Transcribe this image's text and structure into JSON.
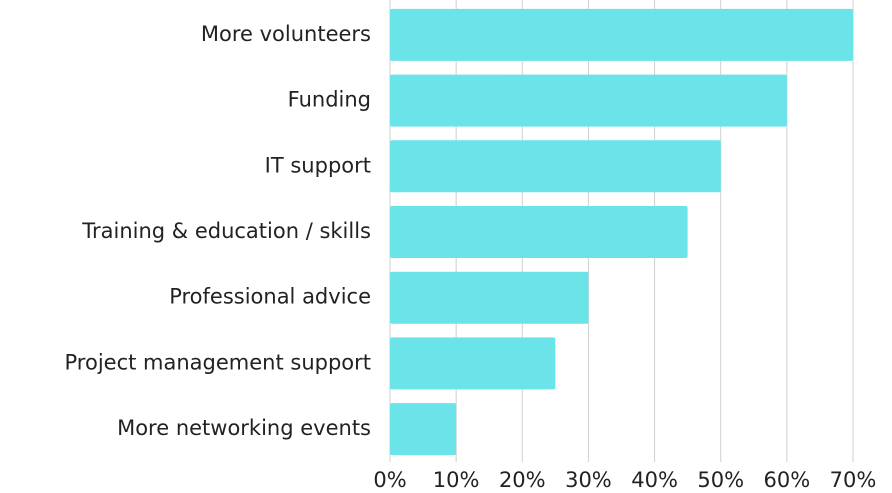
{
  "chart_data": {
    "type": "bar",
    "orientation": "horizontal",
    "categories": [
      "More volunteers",
      "Funding",
      "IT support",
      "Training & education / skills",
      "Professional advice",
      "Project management support",
      "More networking events"
    ],
    "values": [
      70,
      60,
      50,
      45,
      30,
      25,
      10
    ],
    "color": "#6ae4e9",
    "xlim": [
      0,
      70
    ],
    "xticks": [
      {
        "value": 0,
        "label": "0%"
      },
      {
        "value": 10,
        "label": "10%"
      },
      {
        "value": 20,
        "label": "20%"
      },
      {
        "value": 30,
        "label": "30%"
      },
      {
        "value": 40,
        "label": "40%"
      },
      {
        "value": 50,
        "label": "50%"
      },
      {
        "value": 60,
        "label": "60%"
      },
      {
        "value": 70,
        "label": "70%"
      }
    ],
    "grid": true
  }
}
